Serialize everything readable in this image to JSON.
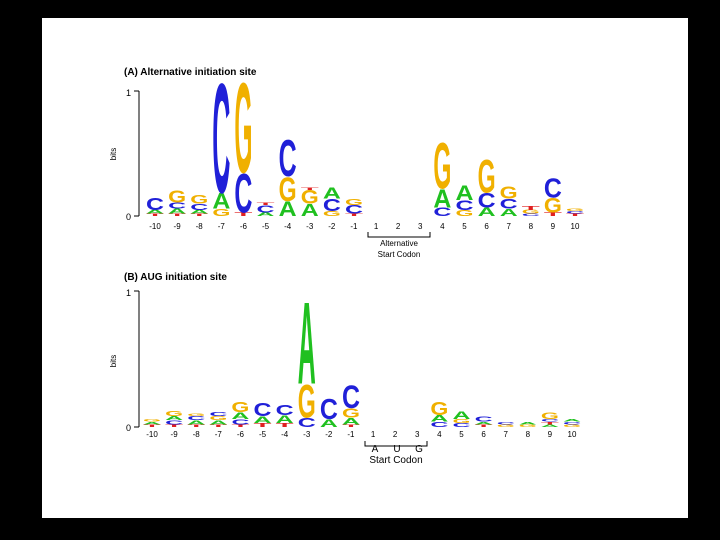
{
  "colors": {
    "A": "#20c020",
    "C": "#2020d8",
    "G": "#f0b000",
    "T": "#e02020",
    "axis": "#000000"
  },
  "chart_data": [
    {
      "type": "sequence-logo",
      "title": "(A) Alternative initiation site",
      "ylabel": "bits",
      "ylim": [
        0,
        1
      ],
      "yticks": [
        "0",
        "1"
      ],
      "positions": [
        "-10",
        "-9",
        "-8",
        "-7",
        "-6",
        "-5",
        "-4",
        "-3",
        "-2",
        "-1",
        "1",
        "2",
        "3",
        "4",
        "5",
        "6",
        "7",
        "8",
        "9",
        "10"
      ],
      "bracket_label": [
        "Alternative",
        "Start Codon"
      ],
      "bracket_letters": [],
      "stacks": [
        [
          [
            "T",
            0.02
          ],
          [
            "A",
            0.03
          ],
          [
            "C",
            0.1
          ]
        ],
        [
          [
            "T",
            0.02
          ],
          [
            "A",
            0.04
          ],
          [
            "C",
            0.05
          ],
          [
            "G",
            0.1
          ]
        ],
        [
          [
            "T",
            0.02
          ],
          [
            "A",
            0.03
          ],
          [
            "C",
            0.05
          ],
          [
            "G",
            0.07
          ]
        ],
        [
          [
            "G",
            0.06
          ],
          [
            "A",
            0.13
          ],
          [
            "C",
            0.9
          ]
        ],
        [
          [
            "T",
            0.03
          ],
          [
            "C",
            0.32
          ],
          [
            "G",
            0.74
          ]
        ],
        [
          [
            "A",
            0.03
          ],
          [
            "C",
            0.06
          ],
          [
            "T",
            0.02
          ]
        ],
        [
          [
            "A",
            0.12
          ],
          [
            "G",
            0.2
          ],
          [
            "C",
            0.3
          ]
        ],
        [
          [
            "A",
            0.1
          ],
          [
            "G",
            0.11
          ],
          [
            "T",
            0.02
          ]
        ],
        [
          [
            "G",
            0.04
          ],
          [
            "C",
            0.1
          ],
          [
            "A",
            0.09
          ]
        ],
        [
          [
            "T",
            0.02
          ],
          [
            "C",
            0.07
          ],
          [
            "G",
            0.05
          ]
        ],
        null,
        null,
        null,
        [
          [
            "C",
            0.07
          ],
          [
            "A",
            0.15
          ],
          [
            "G",
            0.38
          ]
        ],
        [
          [
            "G",
            0.05
          ],
          [
            "C",
            0.08
          ],
          [
            "A",
            0.12
          ]
        ],
        [
          [
            "A",
            0.07
          ],
          [
            "C",
            0.12
          ],
          [
            "G",
            0.27
          ]
        ],
        [
          [
            "A",
            0.06
          ],
          [
            "C",
            0.08
          ],
          [
            "G",
            0.1
          ]
        ],
        [
          [
            "C",
            0.02
          ],
          [
            "G",
            0.03
          ],
          [
            "T",
            0.03
          ]
        ],
        [
          [
            "T",
            0.03
          ],
          [
            "G",
            0.12
          ],
          [
            "C",
            0.16
          ]
        ],
        [
          [
            "T",
            0.02
          ],
          [
            "C",
            0.02
          ],
          [
            "G",
            0.02
          ]
        ]
      ]
    },
    {
      "type": "sequence-logo",
      "title": "(B) AUG initiation site",
      "ylabel": "bits",
      "ylim": [
        0,
        1
      ],
      "yticks": [
        "0",
        "1"
      ],
      "positions": [
        "-10",
        "-9",
        "-8",
        "-7",
        "-6",
        "-5",
        "-4",
        "-3",
        "-2",
        "-1",
        "1",
        "2",
        "3",
        "4",
        "5",
        "6",
        "7",
        "8",
        "9",
        "10"
      ],
      "bracket_label": [
        "Start Codon"
      ],
      "bracket_letters": [
        "A",
        "U",
        "G"
      ],
      "stacks": [
        [
          [
            "T",
            0.02
          ],
          [
            "A",
            0.02
          ],
          [
            "G",
            0.02
          ]
        ],
        [
          [
            "T",
            0.02
          ],
          [
            "C",
            0.03
          ],
          [
            "A",
            0.03
          ],
          [
            "G",
            0.04
          ]
        ],
        [
          [
            "T",
            0.02
          ],
          [
            "A",
            0.03
          ],
          [
            "C",
            0.03
          ],
          [
            "G",
            0.02
          ]
        ],
        [
          [
            "T",
            0.02
          ],
          [
            "A",
            0.03
          ],
          [
            "G",
            0.03
          ],
          [
            "C",
            0.03
          ]
        ],
        [
          [
            "T",
            0.02
          ],
          [
            "C",
            0.04
          ],
          [
            "A",
            0.05
          ],
          [
            "G",
            0.08
          ]
        ],
        [
          [
            "T",
            0.03
          ],
          [
            "A",
            0.05
          ],
          [
            "C",
            0.1
          ]
        ],
        [
          [
            "T",
            0.03
          ],
          [
            "A",
            0.06
          ],
          [
            "C",
            0.08
          ]
        ],
        [
          [
            "C",
            0.07
          ],
          [
            "G",
            0.25
          ],
          [
            "A",
            0.62
          ]
        ],
        [
          [
            "A",
            0.06
          ],
          [
            "C",
            0.15
          ]
        ],
        [
          [
            "T",
            0.02
          ],
          [
            "A",
            0.05
          ],
          [
            "G",
            0.07
          ],
          [
            "C",
            0.17
          ]
        ],
        null,
        null,
        null,
        [
          [
            "C",
            0.04
          ],
          [
            "A",
            0.05
          ],
          [
            "G",
            0.1
          ]
        ],
        [
          [
            "C",
            0.03
          ],
          [
            "G",
            0.03
          ],
          [
            "A",
            0.06
          ]
        ],
        [
          [
            "T",
            0.02
          ],
          [
            "A",
            0.02
          ],
          [
            "C",
            0.04
          ]
        ],
        [
          [
            "G",
            0.02
          ],
          [
            "C",
            0.02
          ]
        ],
        [
          [
            "G",
            0.02
          ],
          [
            "A",
            0.02
          ]
        ],
        [
          [
            "A",
            0.02
          ],
          [
            "T",
            0.02
          ],
          [
            "C",
            0.02
          ],
          [
            "G",
            0.05
          ]
        ],
        [
          [
            "G",
            0.02
          ],
          [
            "C",
            0.02
          ],
          [
            "A",
            0.02
          ]
        ]
      ]
    }
  ]
}
